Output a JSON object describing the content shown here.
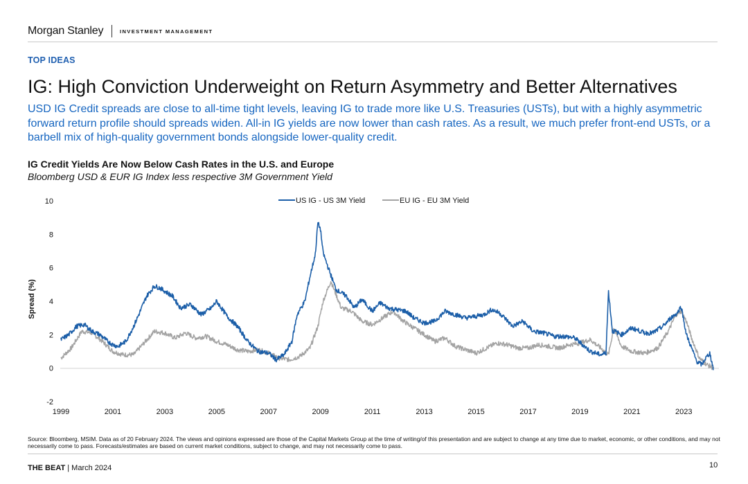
{
  "header": {
    "brand": "Morgan Stanley",
    "division": "INVESTMENT MANAGEMENT"
  },
  "section_label": "TOP IDEAS",
  "headline": "IG: High Conviction Underweight on Return Asymmetry and Better Alternatives",
  "subheadline": "USD IG Credit spreads are close to all-time tight levels, leaving IG to trade more like U.S. Treasuries (USTs), but with a highly asymmetric forward return profile should spreads widen. All-in IG yields are now lower than cash rates. As a result, we much prefer front-end USTs, or a barbell mix of high-quality government bonds alongside lower-quality credit.",
  "colors": {
    "accent": "#1565c0",
    "us_series": "#1b5ea8",
    "eu_series": "#a3a3a3"
  },
  "chart_data": {
    "type": "line",
    "title": "IG Credit Yields Are Now Below Cash Rates in the U.S. and Europe",
    "subtitle": "Bloomberg USD & EUR IG Index less respective 3M Government Yield",
    "xlabel": "",
    "ylabel": "Spread (%)",
    "xlim": [
      1999,
      2024.3
    ],
    "ylim": [
      -2,
      10
    ],
    "yticks": [
      "-2",
      "0",
      "2",
      "4",
      "6",
      "8",
      "10"
    ],
    "xticks": [
      "1999",
      "2001",
      "2003",
      "2005",
      "2007",
      "2009",
      "2011",
      "2013",
      "2015",
      "2017",
      "2019",
      "2021",
      "2023"
    ],
    "legend_position": "top",
    "series": [
      {
        "name": "US IG - US 3M Yield",
        "x": [
          1999.0,
          1999.3,
          1999.6,
          1999.9,
          2000.2,
          2000.5,
          2000.8,
          2001.0,
          2001.2,
          2001.5,
          2001.8,
          2002.0,
          2002.3,
          2002.6,
          2002.8,
          2003.0,
          2003.3,
          2003.6,
          2004.0,
          2004.4,
          2004.8,
          2005.0,
          2005.4,
          2005.8,
          2006.2,
          2006.6,
          2007.0,
          2007.3,
          2007.6,
          2007.9,
          2008.1,
          2008.4,
          2008.6,
          2008.8,
          2008.9,
          2009.0,
          2009.1,
          2009.3,
          2009.6,
          2010.0,
          2010.3,
          2010.6,
          2011.0,
          2011.3,
          2011.6,
          2011.9,
          2012.3,
          2012.6,
          2013.0,
          2013.4,
          2013.8,
          2014.2,
          2014.6,
          2015.0,
          2015.3,
          2015.6,
          2015.9,
          2016.1,
          2016.4,
          2016.8,
          2017.2,
          2017.6,
          2018.0,
          2018.4,
          2018.8,
          2019.1,
          2019.4,
          2019.8,
          2020.0,
          2020.1,
          2020.25,
          2020.35,
          2020.6,
          2021.0,
          2021.5,
          2021.8,
          2022.2,
          2022.5,
          2022.75,
          2022.9,
          2023.1,
          2023.3,
          2023.5,
          2023.7,
          2023.8,
          2024.0,
          2024.15
        ],
        "values": [
          1.7,
          2.0,
          2.5,
          2.6,
          2.2,
          2.0,
          1.6,
          1.4,
          1.3,
          1.6,
          2.5,
          3.2,
          4.3,
          4.9,
          4.8,
          4.6,
          4.3,
          3.6,
          3.8,
          3.2,
          3.6,
          4.0,
          3.1,
          2.5,
          1.6,
          1.0,
          0.9,
          0.5,
          0.8,
          1.6,
          3.2,
          4.0,
          5.5,
          6.8,
          8.7,
          8.3,
          6.9,
          6.0,
          4.7,
          4.3,
          3.6,
          4.1,
          3.4,
          3.9,
          3.6,
          3.5,
          3.4,
          3.0,
          2.7,
          2.8,
          3.4,
          3.2,
          3.0,
          3.1,
          3.2,
          3.5,
          3.3,
          3.0,
          2.5,
          2.8,
          2.2,
          2.1,
          1.9,
          1.9,
          1.8,
          1.4,
          1.0,
          0.8,
          0.9,
          4.6,
          2.2,
          2.2,
          2.0,
          2.4,
          2.1,
          2.1,
          2.5,
          3.0,
          3.3,
          3.7,
          2.0,
          1.2,
          0.4,
          0.2,
          0.5,
          0.9,
          -0.1
        ]
      },
      {
        "name": "EU IG - EU 3M Yield",
        "x": [
          1999.0,
          1999.4,
          1999.8,
          2000.2,
          2000.6,
          2001.0,
          2001.4,
          2001.8,
          2002.2,
          2002.6,
          2003.0,
          2003.4,
          2003.8,
          2004.2,
          2004.6,
          2005.0,
          2005.4,
          2005.8,
          2006.2,
          2006.6,
          2007.0,
          2007.4,
          2007.8,
          2008.2,
          2008.6,
          2008.9,
          2009.1,
          2009.4,
          2009.8,
          2010.2,
          2010.6,
          2011.0,
          2011.4,
          2011.8,
          2012.2,
          2012.6,
          2013.0,
          2013.4,
          2013.8,
          2014.2,
          2014.6,
          2015.0,
          2015.4,
          2015.8,
          2016.2,
          2016.6,
          2017.0,
          2017.4,
          2017.8,
          2018.2,
          2018.6,
          2019.0,
          2019.4,
          2019.8,
          2020.1,
          2020.3,
          2020.6,
          2021.0,
          2021.5,
          2022.0,
          2022.4,
          2022.7,
          2022.9,
          2023.1,
          2023.3,
          2023.6,
          2023.9,
          2024.15
        ],
        "values": [
          0.6,
          1.2,
          2.2,
          2.1,
          1.6,
          1.0,
          0.8,
          0.8,
          1.5,
          2.2,
          2.1,
          1.8,
          2.1,
          1.8,
          1.9,
          1.6,
          1.4,
          1.1,
          1.0,
          1.1,
          0.9,
          0.6,
          0.5,
          0.7,
          1.2,
          2.5,
          4.0,
          5.2,
          3.6,
          3.4,
          2.8,
          2.6,
          3.0,
          3.4,
          2.8,
          2.4,
          2.0,
          1.6,
          1.8,
          1.3,
          1.1,
          0.9,
          1.2,
          1.5,
          1.4,
          1.2,
          1.2,
          1.4,
          1.3,
          1.2,
          1.4,
          1.5,
          1.7,
          1.2,
          0.8,
          2.4,
          1.3,
          1.0,
          0.9,
          1.2,
          2.2,
          3.2,
          3.4,
          2.8,
          1.8,
          0.6,
          0.2,
          0.0
        ]
      }
    ]
  },
  "source_note": "Source: Bloomberg, MSIM. Data as of 20 February 2024. The views and opinions expressed are those of the Capital Markets Group at the time of writing/of this presentation and are subject to change at any time due to market, economic, or other conditions, and may not necessarily come to pass. Forecasts/estimates are based on current market conditions, subject to change, and may not necessarily come to pass.",
  "footer": {
    "publication": "THE BEAT",
    "separator": "|",
    "date": "March 2024",
    "page_number": "10"
  }
}
